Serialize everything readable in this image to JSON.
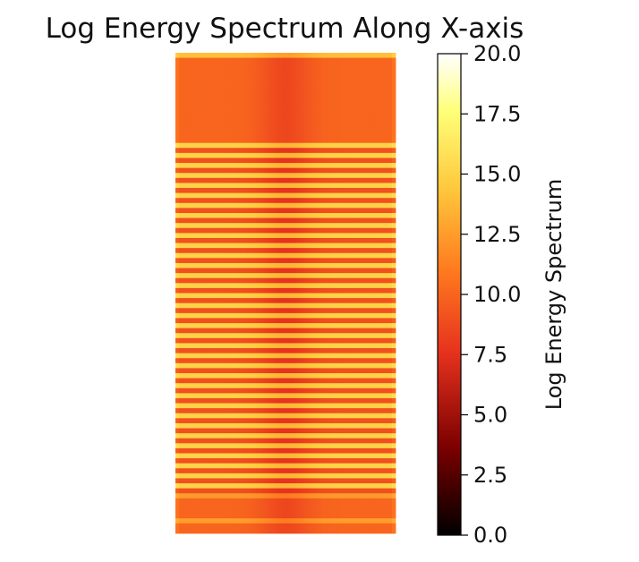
{
  "chart_data": {
    "type": "heatmap",
    "title": "Log Energy Spectrum Along X-axis",
    "xlabel": "",
    "ylabel": "",
    "colorbar": {
      "label": "Log Energy Spectrum",
      "range": [
        0.0,
        20.0
      ],
      "ticks": [
        0.0,
        2.5,
        5.0,
        7.5,
        10.0,
        12.5,
        15.0,
        17.5,
        20.0
      ],
      "tick_labels": [
        "0.0",
        "2.5",
        "5.0",
        "7.5",
        "10.0",
        "12.5",
        "15.0",
        "17.5",
        "20.0"
      ],
      "colormap": "hot",
      "color_stops": [
        "#000000",
        "#7a0000",
        "#e6321e",
        "#ff7a1e",
        "#ffc83c",
        "#ffff78",
        "#ffffff"
      ]
    },
    "grid": false,
    "rows": 96,
    "columns": 60,
    "description_of_values": {
      "top_band_level": 10.0,
      "bottom_band_level": 10.0,
      "striped_region_peak": 15.0,
      "striped_region_trough": 9.0,
      "edge_rows_level": 12.5
    }
  }
}
